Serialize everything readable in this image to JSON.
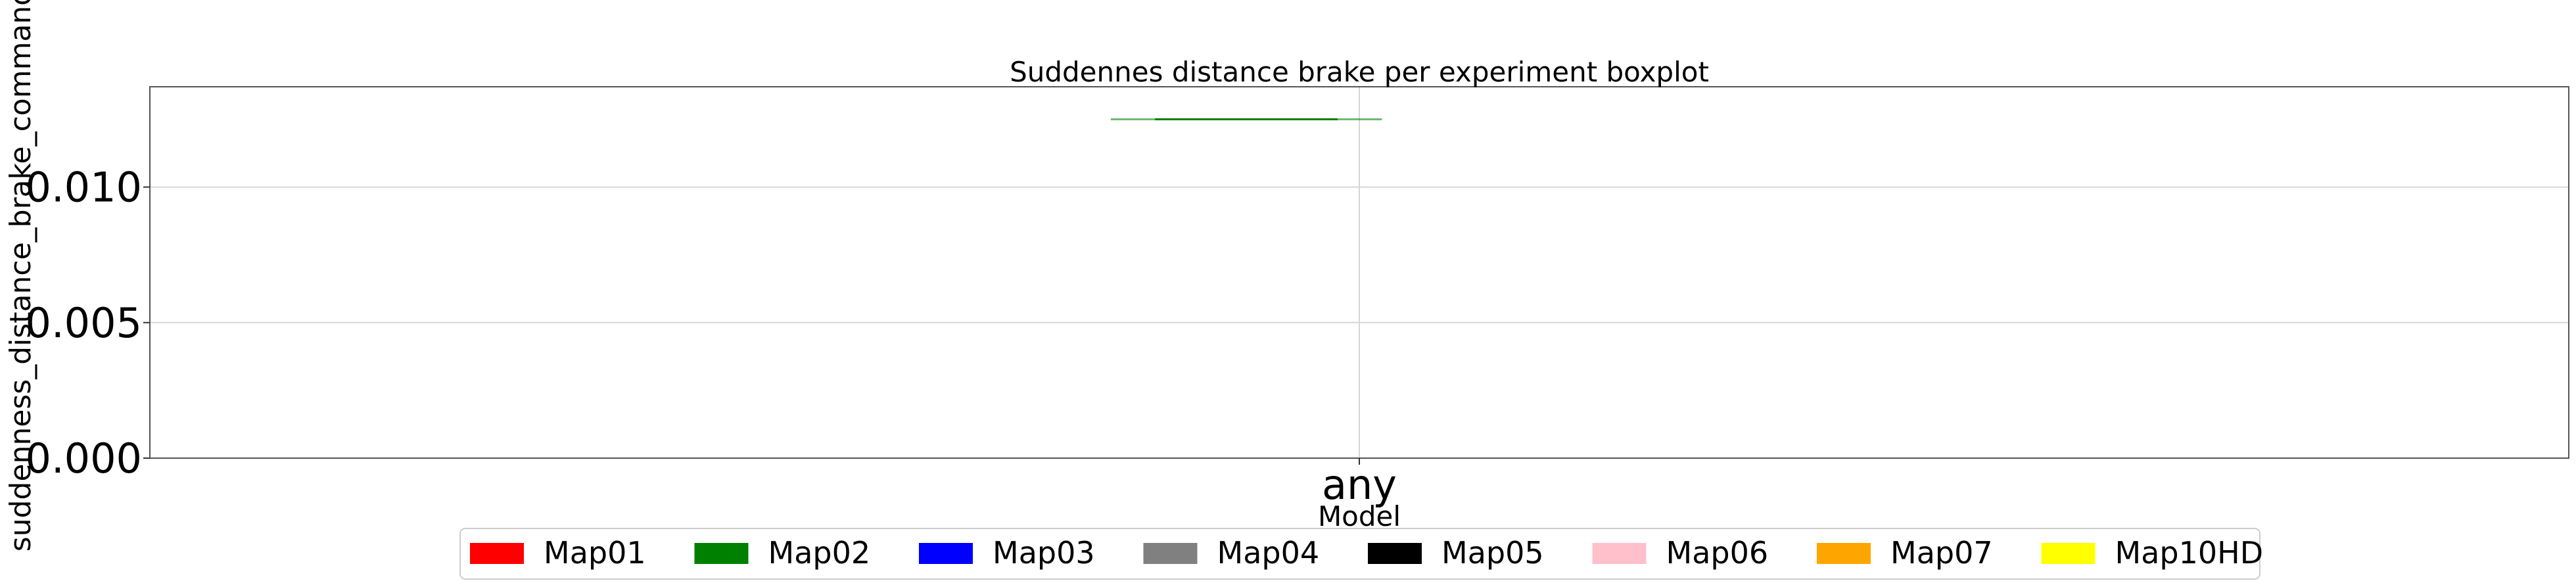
{
  "chart_data": {
    "type": "box",
    "title": "Suddennes distance brake per experiment boxplot",
    "xlabel": "Model",
    "ylabel": "suddenness_distance_brake_command",
    "categories": [
      "any"
    ],
    "ylim": [
      0,
      0.0137
    ],
    "yticks": [
      {
        "value": 0.0,
        "label": "0.000"
      },
      {
        "value": 0.005,
        "label": "0.005"
      },
      {
        "value": 0.01,
        "label": "0.010"
      }
    ],
    "grid": true,
    "legend_position": "bottom-center",
    "series": [
      {
        "name": "Map01",
        "color": "#ff0000",
        "values": []
      },
      {
        "name": "Map02",
        "color": "#008000",
        "values": [
          0.0125
        ],
        "box": {
          "min": 0.0125,
          "q1": 0.0125,
          "median": 0.0125,
          "q3": 0.0125,
          "max": 0.0125
        }
      },
      {
        "name": "Map03",
        "color": "#0000ff",
        "values": []
      },
      {
        "name": "Map04",
        "color": "#808080",
        "values": []
      },
      {
        "name": "Map05",
        "color": "#000000",
        "values": []
      },
      {
        "name": "Map06",
        "color": "#ffc0cb",
        "values": []
      },
      {
        "name": "Map07",
        "color": "#ffa500",
        "values": []
      },
      {
        "name": "Map10HD",
        "color": "#ffff00",
        "values": []
      }
    ]
  }
}
